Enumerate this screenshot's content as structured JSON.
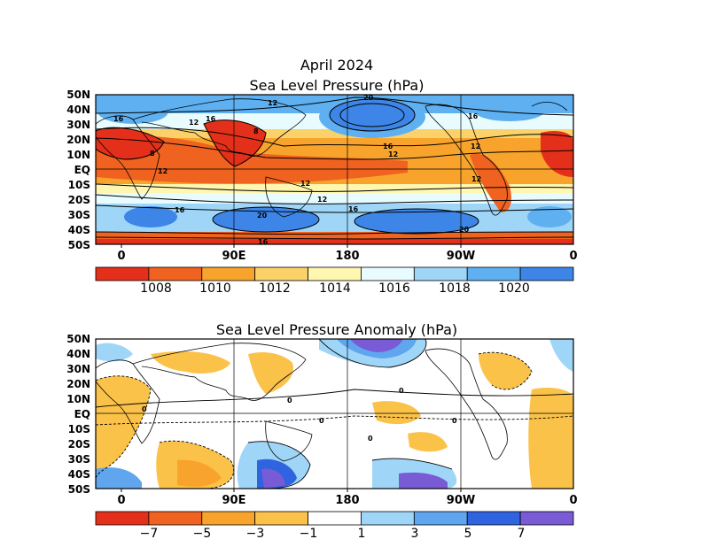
{
  "figure": {
    "title_line1": "April 2024",
    "panel1_title": "Sea Level Pressure (hPa)",
    "panel2_title": "Sea Level Pressure Anomaly (hPa)"
  },
  "axes": {
    "lat_labels": [
      "50N",
      "40N",
      "30N",
      "20N",
      "10N",
      "EQ",
      "10S",
      "20S",
      "30S",
      "40S",
      "50S"
    ],
    "lon_labels": [
      "0",
      "90E",
      "180",
      "90W",
      "0"
    ]
  },
  "colorbar1": {
    "labels": [
      "1008",
      "1010",
      "1012",
      "1014",
      "1016",
      "1018",
      "1020"
    ],
    "colors": [
      "#e4301b",
      "#f0621f",
      "#f8a42c",
      "#fbd26a",
      "#fff6b0",
      "#e8fbff",
      "#9fd6f8",
      "#5fb0f0",
      "#3d86e8"
    ]
  },
  "colorbar2": {
    "labels": [
      "−7",
      "−5",
      "−3",
      "−1",
      "1",
      "3",
      "5",
      "7"
    ],
    "colors": [
      "#e4301b",
      "#f0621f",
      "#f8a42c",
      "#fbc24a",
      "#ffffff",
      "#9fd6f8",
      "#5fa6ee",
      "#2f63e0",
      "#7a5bd6"
    ]
  },
  "contour_labels_panel1": [
    "16",
    "12",
    "16",
    "12",
    "8",
    "8",
    "12",
    "20",
    "12",
    "16",
    "12",
    "16",
    "12",
    "12",
    "12",
    "16",
    "20",
    "16",
    "20",
    "16"
  ],
  "contour_labels_panel2": [
    "0",
    "0",
    "0",
    "0",
    "0",
    "0"
  ]
}
